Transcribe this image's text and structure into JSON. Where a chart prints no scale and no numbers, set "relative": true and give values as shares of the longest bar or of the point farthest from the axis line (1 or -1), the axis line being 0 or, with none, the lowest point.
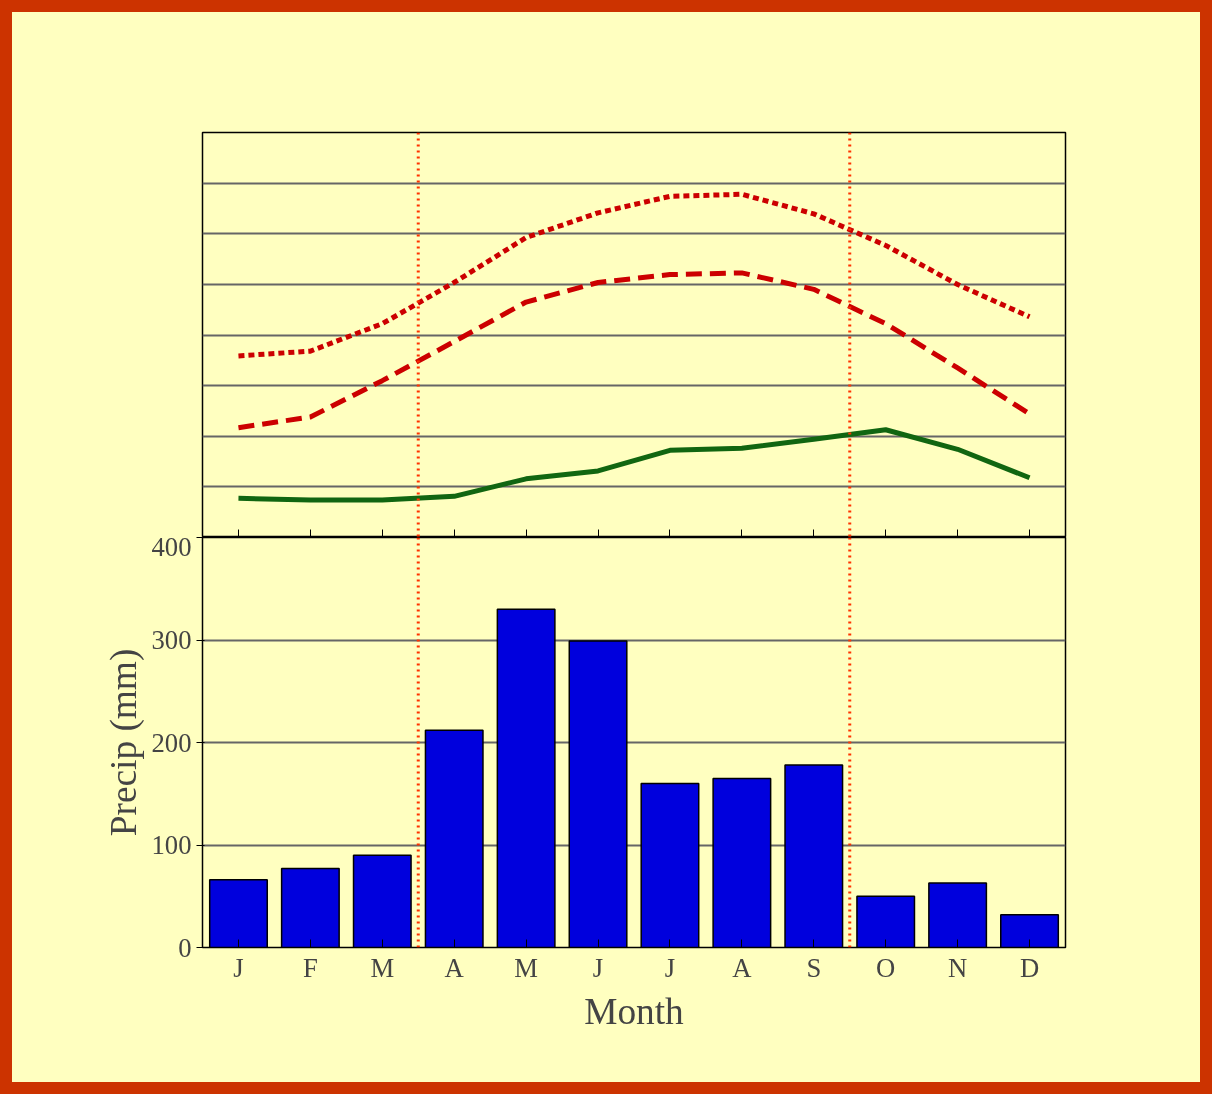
{
  "chart_data": [
    {
      "type": "line",
      "relative": true,
      "categories": [
        null,
        null,
        null,
        null,
        null,
        null,
        null,
        null,
        null,
        null,
        null,
        null
      ],
      "grid": "y",
      "marker": "none",
      "series": [
        {
          "color": "#cc0000",
          "line_style": "dotted",
          "values": [
            0.529,
            0.543,
            0.623,
            0.743,
            0.874,
            0.946,
            0.994,
            1,
            0.943,
            0.851,
            0.737,
            0.643
          ]
        },
        {
          "color": "#cc0000",
          "line_style": "dashed",
          "values": [
            0.32,
            0.351,
            0.457,
            0.571,
            0.686,
            0.743,
            0.766,
            0.771,
            0.723,
            0.623,
            0.494,
            0.36
          ]
        },
        {
          "color": "#116611",
          "line_style": "solid",
          "values": [
            0.114,
            0.109,
            0.109,
            0.12,
            0.171,
            0.194,
            0.254,
            0.26,
            0.286,
            0.314,
            0.257,
            0.174
          ]
        }
      ]
    },
    {
      "type": "bar",
      "categories": [
        "J",
        "F",
        "M",
        "A",
        "M",
        "J",
        "J",
        "A",
        "S",
        "O",
        "N",
        "D"
      ],
      "values": [
        66,
        77,
        90,
        212,
        330,
        299,
        160,
        165,
        178,
        50,
        63,
        32
      ],
      "color": "#0000dd",
      "ylim": [
        0,
        400
      ],
      "yticks": [
        0,
        100,
        200,
        300,
        400
      ],
      "ylabel": "Precip (mm)",
      "xlabel": "Month",
      "grid": "y"
    }
  ]
}
